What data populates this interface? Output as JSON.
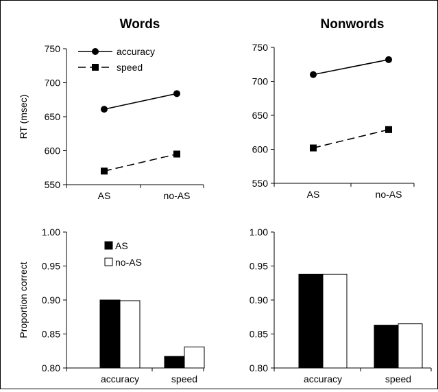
{
  "chart_data": [
    {
      "type": "line",
      "title": "Words",
      "ylabel": "RT (msec)",
      "categories": [
        "AS",
        "no-AS"
      ],
      "ylim": [
        550,
        750
      ],
      "yticks": [
        "550",
        "600",
        "650",
        "700",
        "750"
      ],
      "series": [
        {
          "name": "accuracy",
          "values": [
            661,
            684
          ],
          "marker": "circle",
          "style": "solid",
          "color": "#000000"
        },
        {
          "name": "speed",
          "values": [
            570,
            595
          ],
          "marker": "square",
          "style": "dashed",
          "color": "#000000"
        }
      ],
      "legend": "top-left"
    },
    {
      "type": "line",
      "title": "Nonwords",
      "ylabel": "",
      "categories": [
        "AS",
        "no-AS"
      ],
      "ylim": [
        550,
        750
      ],
      "yticks": [
        "550",
        "600",
        "650",
        "700",
        "750"
      ],
      "series": [
        {
          "name": "accuracy",
          "values": [
            710,
            732
          ],
          "marker": "circle",
          "style": "solid",
          "color": "#000000"
        },
        {
          "name": "speed",
          "values": [
            602,
            629
          ],
          "marker": "square",
          "style": "dashed",
          "color": "#000000"
        }
      ]
    },
    {
      "type": "bar",
      "title": "",
      "ylabel": "Proportion correct",
      "categories": [
        "accuracy",
        "speed"
      ],
      "ylim": [
        0.8,
        1.0
      ],
      "yticks": [
        "0.80",
        "0.85",
        "0.90",
        "0.95",
        "1.00"
      ],
      "series": [
        {
          "name": "AS",
          "values": [
            0.9,
            0.817
          ],
          "color": "#000000"
        },
        {
          "name": "no-AS",
          "values": [
            0.899,
            0.831
          ],
          "color": "#ffffff"
        }
      ],
      "legend": "top-left"
    },
    {
      "type": "bar",
      "title": "",
      "ylabel": "",
      "categories": [
        "accuracy",
        "speed"
      ],
      "ylim": [
        0.8,
        1.0
      ],
      "yticks": [
        "0.80",
        "0.85",
        "0.90",
        "0.95",
        "1.00"
      ],
      "series": [
        {
          "name": "AS",
          "values": [
            0.938,
            0.863
          ],
          "color": "#000000"
        },
        {
          "name": "no-AS",
          "values": [
            0.938,
            0.865
          ],
          "color": "#ffffff"
        }
      ]
    }
  ]
}
